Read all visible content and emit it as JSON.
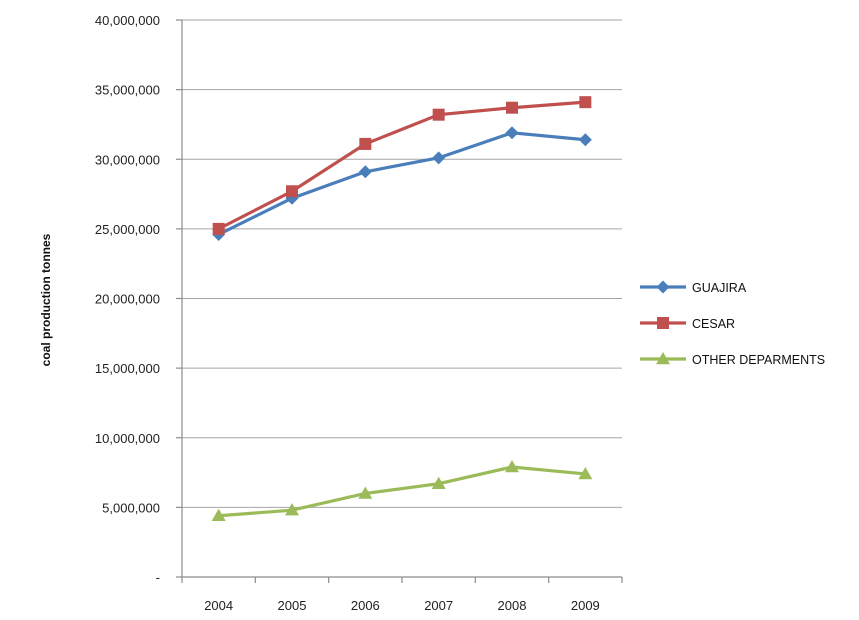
{
  "chart_data": {
    "type": "line",
    "title": "",
    "xlabel": "",
    "ylabel": "coal production tonnes",
    "categories": [
      "2004",
      "2005",
      "2006",
      "2007",
      "2008",
      "2009"
    ],
    "ylim": [
      0,
      40000000
    ],
    "ytick_values": [
      0,
      5000000,
      10000000,
      15000000,
      20000000,
      25000000,
      30000000,
      35000000,
      40000000
    ],
    "ytick_labels": [
      "-",
      "5,000,000",
      "10,000,000",
      "15,000,000",
      "20,000,000",
      "25,000,000",
      "30,000,000",
      "35,000,000",
      "40,000,000"
    ],
    "grid": true,
    "legend_position": "right",
    "series": [
      {
        "name": "GUAJIRA",
        "color": "#4a7ebb",
        "marker": "diamond",
        "values": [
          24600000,
          27200000,
          29100000,
          30100000,
          31900000,
          31400000
        ]
      },
      {
        "name": "CESAR",
        "color": "#c0504d",
        "marker": "square",
        "values": [
          25000000,
          27700000,
          31100000,
          33200000,
          33700000,
          34100000
        ]
      },
      {
        "name": "OTHER DEPARMENTS",
        "color": "#9bbb59",
        "marker": "triangle",
        "values": [
          4400000,
          4800000,
          6000000,
          6700000,
          7900000,
          7400000
        ]
      }
    ]
  }
}
